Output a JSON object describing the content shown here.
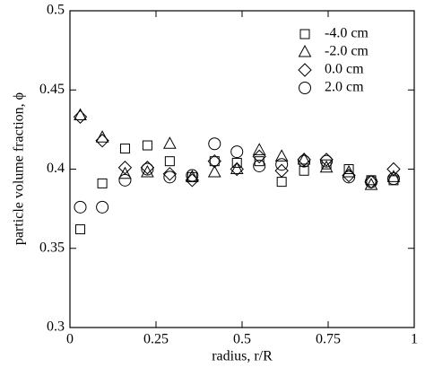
{
  "chart_data": {
    "type": "scatter",
    "x_label": "radius, r/R",
    "y_label": "particle volume fraction, ϕ",
    "x": [
      0.03,
      0.094,
      0.16,
      0.225,
      0.29,
      0.355,
      0.42,
      0.485,
      0.55,
      0.615,
      0.68,
      0.745,
      0.81,
      0.875,
      0.94
    ],
    "series": [
      {
        "name": "-4.0 cm",
        "marker": "square",
        "color": "#000000",
        "values": [
          0.362,
          0.391,
          0.413,
          0.415,
          0.405,
          0.395,
          0.405,
          0.404,
          0.405,
          0.392,
          0.399,
          0.403,
          0.4,
          0.393,
          0.393
        ]
      },
      {
        "name": "-2.0 cm",
        "marker": "triangle",
        "color": "#000000",
        "values": [
          0.434,
          0.42,
          0.397,
          0.398,
          0.416,
          0.395,
          0.398,
          0.4,
          0.412,
          0.408,
          0.406,
          0.401,
          0.398,
          0.39,
          0.395
        ]
      },
      {
        "name": "0.0 cm",
        "marker": "diamond",
        "color": "#000000",
        "values": [
          0.433,
          0.418,
          0.401,
          0.401,
          0.397,
          0.393,
          0.405,
          0.4,
          0.408,
          0.399,
          0.406,
          0.406,
          0.396,
          0.392,
          0.4
        ]
      },
      {
        "name": "2.0 cm",
        "marker": "circle",
        "color": "#000000",
        "values": [
          0.376,
          0.376,
          0.393,
          0.4,
          0.395,
          0.396,
          0.416,
          0.411,
          0.402,
          0.403,
          0.405,
          0.405,
          0.395,
          0.392,
          0.394
        ]
      }
    ],
    "xlim": [
      0,
      1
    ],
    "xticks": [
      0,
      0.25,
      0.5,
      0.75,
      1
    ],
    "ylim": [
      0.3,
      0.5
    ],
    "yticks": [
      0.3,
      0.35,
      0.4,
      0.45,
      0.5
    ],
    "legend": "upper-right",
    "grid": false
  }
}
